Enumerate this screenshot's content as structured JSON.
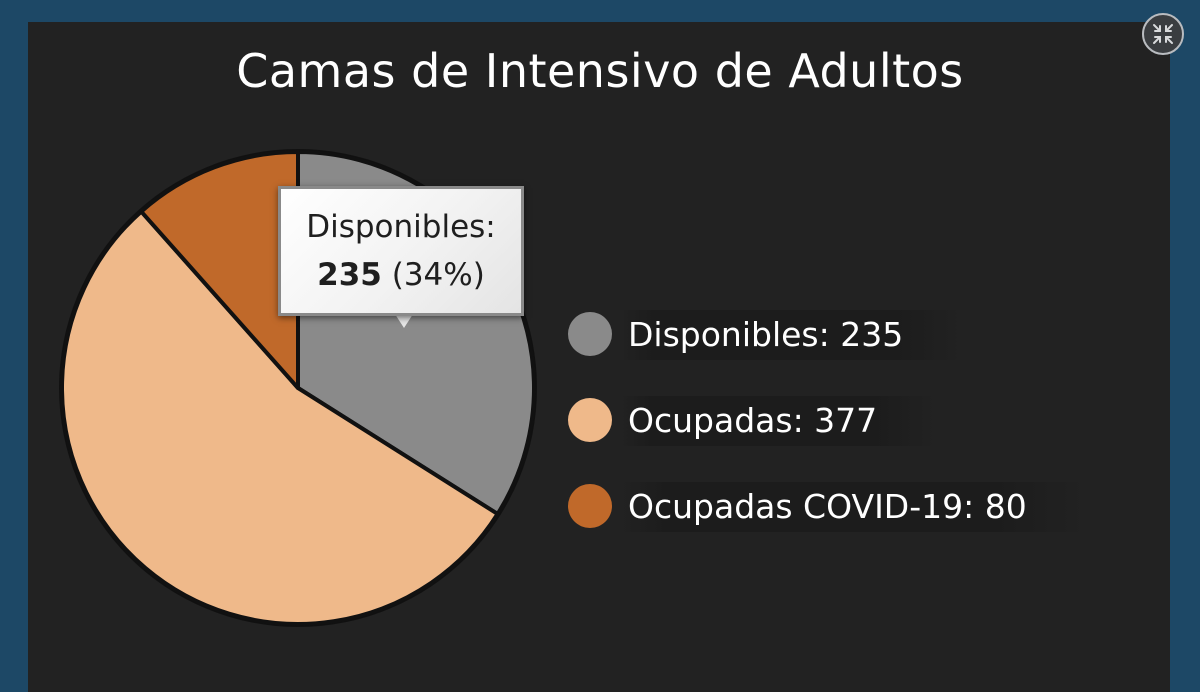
{
  "chart_data": {
    "type": "pie",
    "title": "Camas de Intensivo de Adultos",
    "categories": [
      "Disponibles",
      "Ocupadas",
      "Ocupadas COVID-19"
    ],
    "values": [
      235,
      377,
      80
    ],
    "colors": [
      "#8a8a8a",
      "#efb98a",
      "#c0692a"
    ],
    "legend_position": "right"
  },
  "legend": [
    {
      "label": "Disponibles:  235"
    },
    {
      "label": "Ocupadas:  377"
    },
    {
      "label": "Ocupadas COVID-19:  80"
    }
  ],
  "tooltip": {
    "category": "Disponibles:",
    "value": "235",
    "percent": "(34%)"
  },
  "controls": {
    "exit_fullscreen_icon": "collapse-arrows-icon"
  }
}
